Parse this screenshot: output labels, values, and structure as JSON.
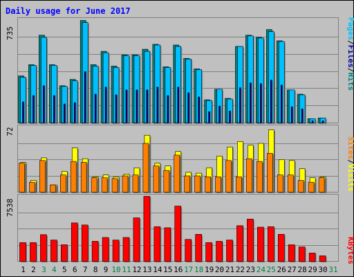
{
  "title": "Daily usage for June 2017",
  "colors": {
    "background": "#c0c0c0",
    "title": "#0000ff",
    "hits": "#008080",
    "files": "#00c0ff",
    "pages": "#0000a0",
    "visits": "#ffff00",
    "sites": "#ff8000",
    "kbytes": "#ff0000",
    "weekend_label": "#008040",
    "weekday_label": "#000000"
  },
  "chart_data": [
    {
      "type": "bar",
      "panel": "hits-files-pages",
      "scale_label": "735",
      "ylim": [
        0,
        735
      ],
      "legend": [
        {
          "name": "Pages",
          "color": "#00c0ff"
        },
        {
          "name": "Files",
          "color": "#0000a0"
        },
        {
          "name": "Hits",
          "color": "#008080"
        }
      ],
      "categories": [
        "1",
        "2",
        "3",
        "4",
        "5",
        "6",
        "7",
        "8",
        "9",
        "10",
        "11",
        "12",
        "13",
        "14",
        "15",
        "16",
        "17",
        "18",
        "19",
        "20",
        "21",
        "22",
        "23",
        "24",
        "25",
        "26",
        "27",
        "28",
        "29",
        "30",
        "31"
      ],
      "series": [
        {
          "name": "Hits",
          "values": [
            335,
            415,
            625,
            415,
            265,
            310,
            730,
            415,
            510,
            405,
            485,
            485,
            525,
            560,
            400,
            555,
            460,
            385,
            165,
            240,
            175,
            545,
            625,
            610,
            665,
            585,
            235,
            205,
            30,
            35,
            0
          ]
        },
        {
          "name": "Files",
          "values": [
            325,
            410,
            610,
            410,
            260,
            300,
            715,
            405,
            500,
            395,
            480,
            480,
            510,
            555,
            395,
            545,
            455,
            380,
            160,
            240,
            170,
            545,
            620,
            605,
            650,
            580,
            235,
            200,
            30,
            35,
            0
          ]
        },
        {
          "name": "Pages",
          "values": [
            150,
            195,
            265,
            195,
            135,
            145,
            365,
            205,
            255,
            200,
            235,
            235,
            235,
            255,
            195,
            255,
            215,
            185,
            80,
            120,
            85,
            250,
            285,
            280,
            305,
            270,
            115,
            100,
            15,
            15,
            0
          ]
        }
      ]
    },
    {
      "type": "bar",
      "panel": "visits-sites",
      "scale_label": "72",
      "ylim": [
        0,
        72
      ],
      "legend": [
        {
          "name": "Sites",
          "color": "#ff8000"
        },
        {
          "name": "Visits",
          "color": "#ffff00"
        }
      ],
      "categories": [
        "1",
        "2",
        "3",
        "4",
        "5",
        "6",
        "7",
        "8",
        "9",
        "10",
        "11",
        "12",
        "13",
        "14",
        "15",
        "16",
        "17",
        "18",
        "19",
        "20",
        "21",
        "22",
        "23",
        "24",
        "25",
        "26",
        "27",
        "28",
        "29",
        "30",
        "31"
      ],
      "series": [
        {
          "name": "Visits",
          "values": [
            33,
            13,
            38,
            8,
            23,
            49,
            37,
            17,
            19,
            17,
            20,
            27,
            63,
            32,
            29,
            45,
            22,
            21,
            27,
            40,
            50,
            56,
            52,
            54,
            69,
            36,
            35,
            26,
            16,
            17,
            0
          ]
        },
        {
          "name": "Sites",
          "values": [
            32,
            11,
            35,
            8,
            19,
            34,
            33,
            16,
            16,
            15,
            18,
            19,
            54,
            29,
            24,
            41,
            18,
            18,
            17,
            17,
            35,
            17,
            37,
            34,
            43,
            19,
            19,
            13,
            11,
            16,
            0
          ]
        }
      ]
    },
    {
      "type": "bar",
      "panel": "kbytes",
      "scale_label": "7538",
      "ylim": [
        0,
        7538
      ],
      "legend": [
        {
          "name": "KBytes",
          "color": "#ff0000"
        }
      ],
      "categories": [
        "1",
        "2",
        "3",
        "4",
        "5",
        "6",
        "7",
        "8",
        "9",
        "10",
        "11",
        "12",
        "13",
        "14",
        "15",
        "16",
        "17",
        "18",
        "19",
        "20",
        "21",
        "22",
        "23",
        "24",
        "25",
        "26",
        "27",
        "28",
        "29",
        "30",
        "31"
      ],
      "series": [
        {
          "name": "KBytes",
          "values": [
            2180,
            2180,
            3100,
            2480,
            1930,
            4460,
            4220,
            2330,
            2770,
            2480,
            2770,
            5050,
            7540,
            4020,
            3900,
            6410,
            2550,
            3140,
            2180,
            2330,
            2480,
            4140,
            4900,
            3970,
            4020,
            3140,
            1930,
            1680,
            970,
            650,
            0
          ]
        }
      ]
    }
  ],
  "x_axis": {
    "labels": [
      "1",
      "2",
      "3",
      "4",
      "5",
      "6",
      "7",
      "8",
      "9",
      "10",
      "11",
      "12",
      "13",
      "14",
      "15",
      "16",
      "17",
      "18",
      "19",
      "20",
      "21",
      "22",
      "23",
      "24",
      "25",
      "26",
      "27",
      "28",
      "29",
      "30",
      "31"
    ],
    "weekend_days": [
      "3",
      "4",
      "10",
      "11",
      "17",
      "18",
      "24",
      "25",
      "31"
    ]
  }
}
